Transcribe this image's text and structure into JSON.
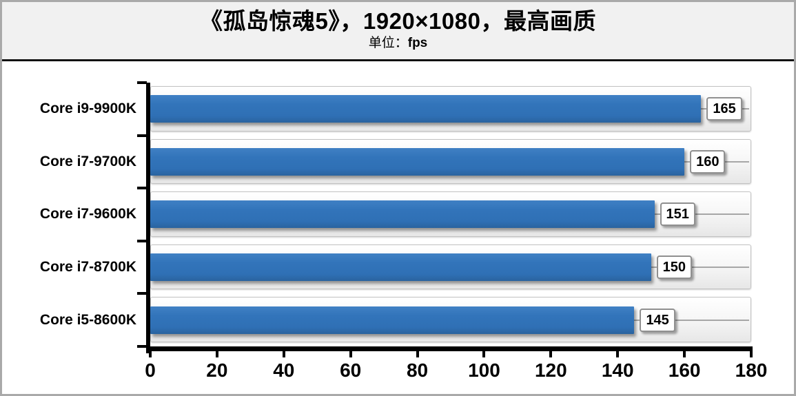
{
  "header": {
    "title": "《孤岛惊魂5》，1920×1080，最高画质",
    "subtitle_label": "单位：",
    "subtitle_unit": "fps"
  },
  "chart_data": {
    "type": "bar",
    "orientation": "horizontal",
    "title": "《孤岛惊魂5》，1920×1080，最高画质",
    "unit": "fps",
    "categories": [
      "Core i9-9900K",
      "Core i7-9700K",
      "Core i7-9600K",
      "Core i7-8700K",
      "Core i5-8600K"
    ],
    "values": [
      165,
      160,
      151,
      150,
      145
    ],
    "xlim": [
      0,
      180
    ],
    "x_ticks": [
      0,
      20,
      40,
      60,
      80,
      100,
      120,
      140,
      160,
      180
    ],
    "value_labels": true,
    "grid": false,
    "legend": "none",
    "colors": {
      "bar": "#3274ba",
      "track_top": "#ffffff",
      "track_bottom": "#e7e7e7",
      "axis": "#000000",
      "header_bg": "#f1f1f1",
      "frame_border": "#a9a9a9"
    }
  }
}
